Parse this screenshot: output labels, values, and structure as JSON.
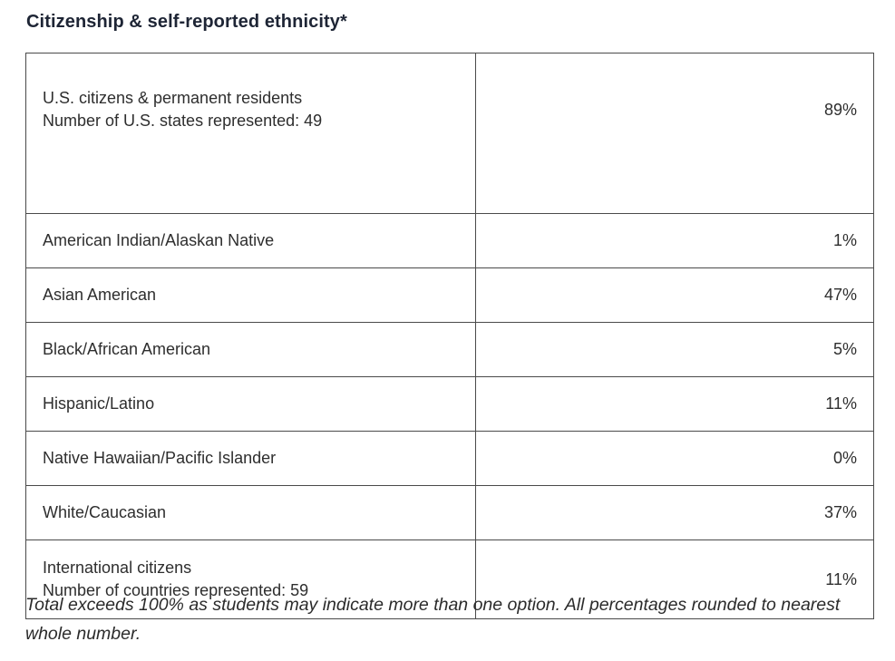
{
  "heading": "Citizenship & self-reported ethnicity*",
  "table": {
    "citizens": {
      "line1": "U.S. citizens & permanent residents",
      "line2": "Number of U.S. states represented: 49",
      "value": "89%"
    },
    "rows": [
      {
        "label": "American Indian/Alaskan Native",
        "value": "1%"
      },
      {
        "label": "Asian American",
        "value": "47%"
      },
      {
        "label": "Black/African American",
        "value": "5%"
      },
      {
        "label": "Hispanic/Latino",
        "value": "11%"
      },
      {
        "label": "Native Hawaiian/Pacific Islander",
        "value": "0%"
      },
      {
        "label": "White/Caucasian",
        "value": "37%"
      }
    ],
    "international": {
      "line1": "International citizens",
      "line2": "Number of countries represented: 59",
      "value": "11%"
    }
  },
  "footnote": "Total exceeds 100% as students may indicate more than one option. All percentages rounded to nearest whole number."
}
